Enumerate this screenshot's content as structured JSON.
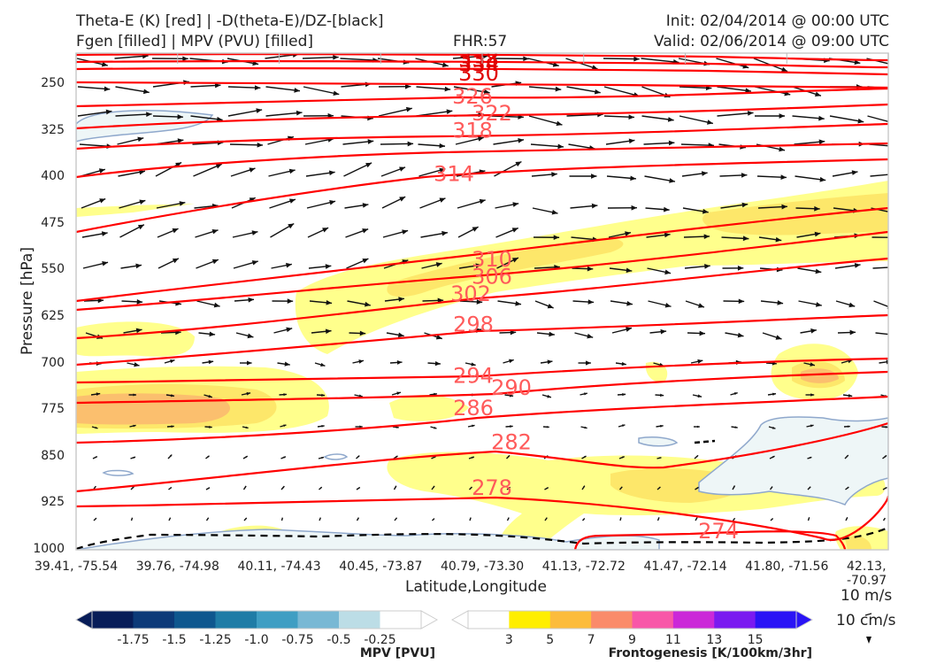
{
  "header": {
    "title_left_1": "Theta-E (K) [red] | -D(theta-E)/DZ-[black]",
    "title_left_2": "Fgen [filled] | MPV (PVU) [filled]",
    "fhr": "FHR:57",
    "title_right_1": "Init: 02/04/2014 @ 00:00 UTC",
    "title_right_2": "Valid: 02/06/2014 @ 09:00 UTC"
  },
  "axes": {
    "ylabel": "Pressure [hPa]",
    "xlabel": "Latitude,Longitude",
    "scale_label_ms": "10 m/s",
    "scale_label_cms": "10 cm/s"
  },
  "colorbars": {
    "mpv": {
      "label": "MPV [PVU]",
      "colors": [
        "#081d58",
        "#0d3a78",
        "#0f578e",
        "#1f7ca6",
        "#3f9ec3",
        "#78b8d4",
        "#bcdde6",
        "#ffffff"
      ],
      "ticks": [
        "-1.75",
        "-1.5",
        "-1.25",
        "-1.0",
        "-0.75",
        "-0.5",
        "-0.25"
      ]
    },
    "fgen": {
      "label": "Frontogenesis [K/100km/3hr]",
      "colors": [
        "#ffffff",
        "#ffee00",
        "#fcbc3c",
        "#fa8b6a",
        "#f857a8",
        "#cb28d8",
        "#7a1af0",
        "#2a14f5"
      ],
      "ticks": [
        "3",
        "5",
        "7",
        "9",
        "11",
        "13",
        "15"
      ]
    }
  },
  "chart_data": {
    "type": "cross-section",
    "y_scale": "pressure (inverted)",
    "ylim": [
      1000,
      200
    ],
    "y_ticks": [
      250,
      325,
      400,
      475,
      550,
      625,
      700,
      775,
      850,
      925,
      1000
    ],
    "x_tick_labels": [
      "39.41, -75.54",
      "39.76, -74.98",
      "40.11, -74.43",
      "40.45, -73.87",
      "40.79, -73.30",
      "41.13, -72.72",
      "41.47, -72.14",
      "41.80, -71.56",
      "42.13, -70.97"
    ],
    "theta_e_contour_labels": [
      {
        "value": "338",
        "pressure": 210
      },
      {
        "value": "334",
        "pressure": 217
      },
      {
        "value": "330",
        "pressure": 233
      },
      {
        "value": "326",
        "pressure": 270
      },
      {
        "value": "322",
        "pressure": 297
      },
      {
        "value": "318",
        "pressure": 325
      },
      {
        "value": "314",
        "pressure": 395
      },
      {
        "value": "310",
        "pressure": 532
      },
      {
        "value": "306",
        "pressure": 560
      },
      {
        "value": "302",
        "pressure": 588
      },
      {
        "value": "298",
        "pressure": 637
      },
      {
        "value": "294",
        "pressure": 720
      },
      {
        "value": "290",
        "pressure": 739
      },
      {
        "value": "286",
        "pressure": 772
      },
      {
        "value": "282",
        "pressure": 827
      },
      {
        "value": "278",
        "pressure": 900
      },
      {
        "value": "274",
        "pressure": 970
      }
    ],
    "colors": {
      "theta_e": "#ff0000",
      "theta_e_label": "#ff5a5a",
      "stability": "#000000",
      "mpv_outline": "#8fa8cc"
    }
  }
}
